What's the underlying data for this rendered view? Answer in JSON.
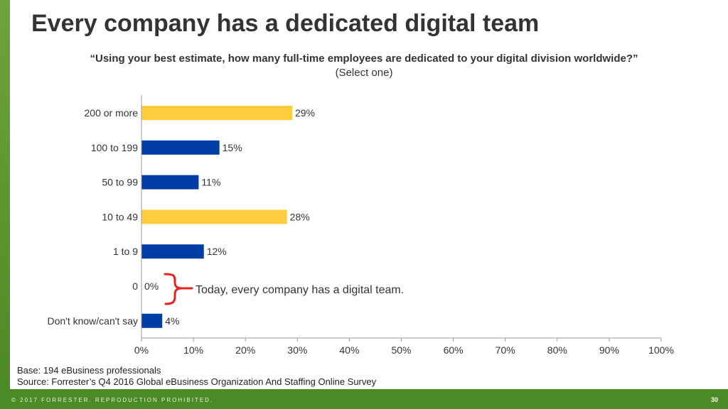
{
  "slide": {
    "title": "Every company has a dedicated digital team",
    "question": "“Using your best estimate, how many full-time employees are dedicated to your digital division worldwide?”",
    "instruction": "(Select one)",
    "base_note": "Base: 194 eBusiness professionals",
    "source_note": "Source: Forrester’s Q4 2016 Global eBusiness Organization And Staffing Online Survey",
    "copyright": "© 2017 FORRESTER. REPRODUCTION PROHIBITED.",
    "page_number": "30"
  },
  "colors": {
    "highlight_bar": "#FFCC3D",
    "standard_bar": "#003DA5",
    "brace": "#E8211D",
    "brand_green": "#4C8A25"
  },
  "chart_data": {
    "type": "bar",
    "orientation": "horizontal",
    "categories": [
      "200 or more",
      "100 to 199",
      "50 to 99",
      "10 to 49",
      "1 to 9",
      "0",
      "Don't know/can't say"
    ],
    "values": [
      29,
      15,
      11,
      28,
      12,
      0,
      4
    ],
    "value_labels": [
      "29%",
      "15%",
      "11%",
      "28%",
      "12%",
      "0%",
      "4%"
    ],
    "bar_colors": [
      "#FFCC3D",
      "#003DA5",
      "#003DA5",
      "#FFCC3D",
      "#003DA5",
      "#003DA5",
      "#003DA5"
    ],
    "xlim": [
      0,
      100
    ],
    "x_ticks": [
      "0%",
      "10%",
      "20%",
      "30%",
      "40%",
      "50%",
      "60%",
      "70%",
      "80%",
      "90%",
      "100%"
    ],
    "grid": false,
    "annotation": "Today, every company has a digital team."
  }
}
